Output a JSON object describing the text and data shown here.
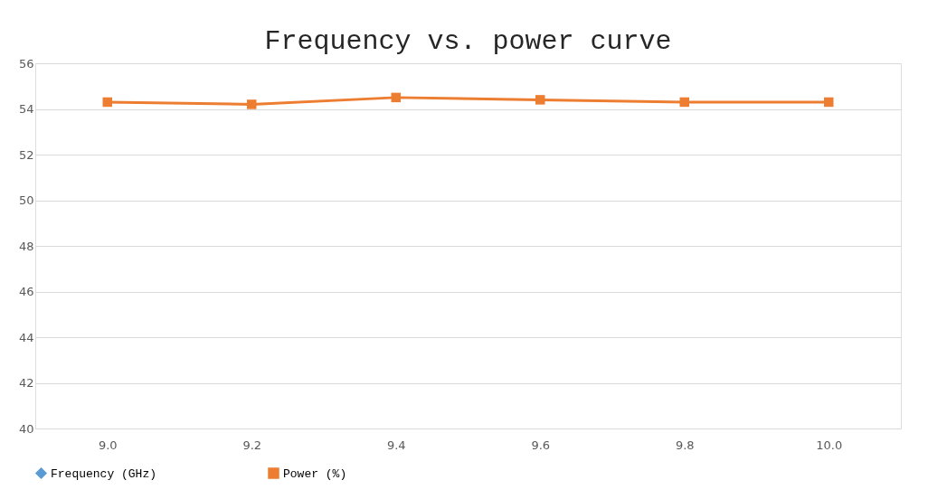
{
  "chart_data": {
    "type": "line",
    "title": "Frequency vs. power curve",
    "categories": [
      "9.0",
      "9.2",
      "9.4",
      "9.6",
      "9.8",
      "10.0"
    ],
    "series": [
      {
        "name": "Frequency (GHz)",
        "color": "#5b9bd5",
        "marker": "diamond",
        "values": [
          null,
          null,
          null,
          null,
          null,
          null
        ]
      },
      {
        "name": "Power (%)",
        "color": "#ed7d31",
        "marker": "square",
        "values": [
          54.3,
          54.2,
          54.5,
          54.4,
          54.3,
          54.3
        ]
      }
    ],
    "ylim": [
      40,
      56
    ],
    "yticks": [
      40,
      42,
      44,
      46,
      48,
      50,
      52,
      54,
      56
    ],
    "grid": "y",
    "legend": "bottom"
  }
}
